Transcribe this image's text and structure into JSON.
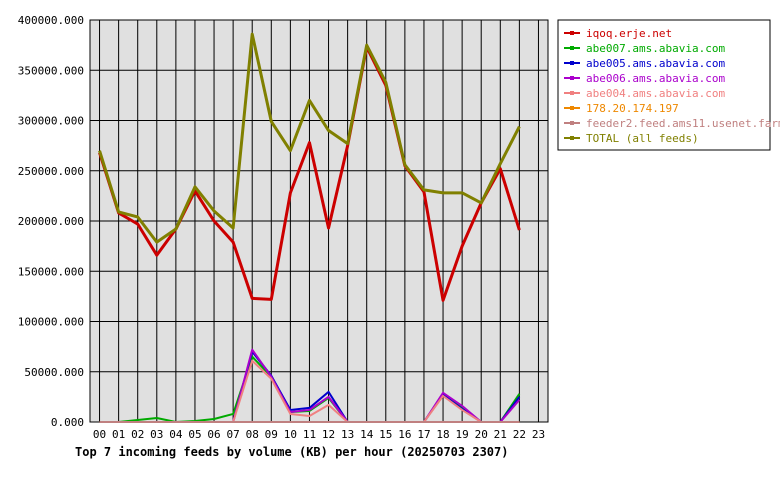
{
  "chart_data": {
    "type": "line",
    "title": "Top 7 incoming feeds by volume (KB) per hour (20250703 2307)",
    "xlabel": "",
    "ylabel": "",
    "x": [
      "00",
      "01",
      "02",
      "03",
      "04",
      "05",
      "06",
      "07",
      "08",
      "09",
      "10",
      "11",
      "12",
      "13",
      "14",
      "15",
      "16",
      "17",
      "18",
      "19",
      "20",
      "21",
      "22",
      "23"
    ],
    "ylim": [
      0,
      400000
    ],
    "yticks": [
      "0.000",
      "50000.000",
      "100000.000",
      "150000.000",
      "200000.000",
      "250000.000",
      "300000.000",
      "350000.000",
      "400000.000"
    ],
    "ytick_values": [
      0,
      50000,
      100000,
      150000,
      200000,
      250000,
      300000,
      350000,
      400000
    ],
    "grid": true,
    "legend_position": "right",
    "plot_background": "#e0e0e0",
    "series": [
      {
        "name": "iqoq.erje.net",
        "color": "#cc0000",
        "values": [
          268000,
          208000,
          197000,
          166000,
          192000,
          230000,
          200000,
          179000,
          123000,
          122000,
          228000,
          278000,
          193000,
          275000,
          373000,
          335000,
          255000,
          229000,
          121000,
          175000,
          218000,
          252000,
          191000,
          null
        ]
      },
      {
        "name": "abe007.ams.abavia.com",
        "color": "#00aa00",
        "values": [
          0,
          0,
          2000,
          4000,
          0,
          1000,
          3000,
          8000,
          65000,
          45000,
          10000,
          11000,
          24000,
          0,
          0,
          0,
          0,
          0,
          28000,
          14000,
          0,
          0,
          28000,
          null
        ]
      },
      {
        "name": "abe005.ams.abavia.com",
        "color": "#0000cc",
        "values": [
          0,
          0,
          0,
          0,
          0,
          0,
          0,
          0,
          70000,
          46000,
          12000,
          14000,
          30000,
          0,
          0,
          0,
          0,
          0,
          27000,
          13000,
          0,
          0,
          25000,
          null
        ]
      },
      {
        "name": "abe006.ams.abavia.com",
        "color": "#aa00cc",
        "values": [
          0,
          0,
          0,
          0,
          0,
          0,
          0,
          0,
          72000,
          45000,
          10000,
          12000,
          25000,
          0,
          0,
          0,
          0,
          0,
          29000,
          16000,
          0,
          0,
          22000,
          null
        ]
      },
      {
        "name": "abe004.ams.abavia.com",
        "color": "#f08080",
        "values": [
          0,
          0,
          0,
          0,
          0,
          0,
          0,
          0,
          61000,
          43000,
          8000,
          6000,
          17000,
          0,
          0,
          0,
          0,
          0,
          26000,
          12000,
          0,
          0,
          0,
          null
        ]
      },
      {
        "name": "178.20.174.197",
        "color": "#ee8800",
        "values": [
          0,
          0,
          0,
          0,
          0,
          0,
          0,
          0,
          0,
          0,
          0,
          0,
          0,
          0,
          0,
          0,
          0,
          0,
          0,
          0,
          0,
          0,
          0,
          null
        ]
      },
      {
        "name": "feeder2.feed.ams11.usenet.farm",
        "color": "#c08080",
        "values": [
          0,
          0,
          0,
          0,
          0,
          0,
          0,
          0,
          0,
          0,
          0,
          0,
          0,
          0,
          0,
          0,
          0,
          0,
          0,
          0,
          0,
          0,
          0,
          null
        ]
      },
      {
        "name": "TOTAL (all feeds)",
        "color": "#808000",
        "values": [
          270000,
          209000,
          204000,
          179000,
          192000,
          234000,
          210000,
          193000,
          386000,
          299000,
          270000,
          320000,
          290000,
          277000,
          375000,
          338000,
          256000,
          231000,
          228000,
          228000,
          218000,
          257000,
          294000,
          null
        ]
      }
    ]
  }
}
